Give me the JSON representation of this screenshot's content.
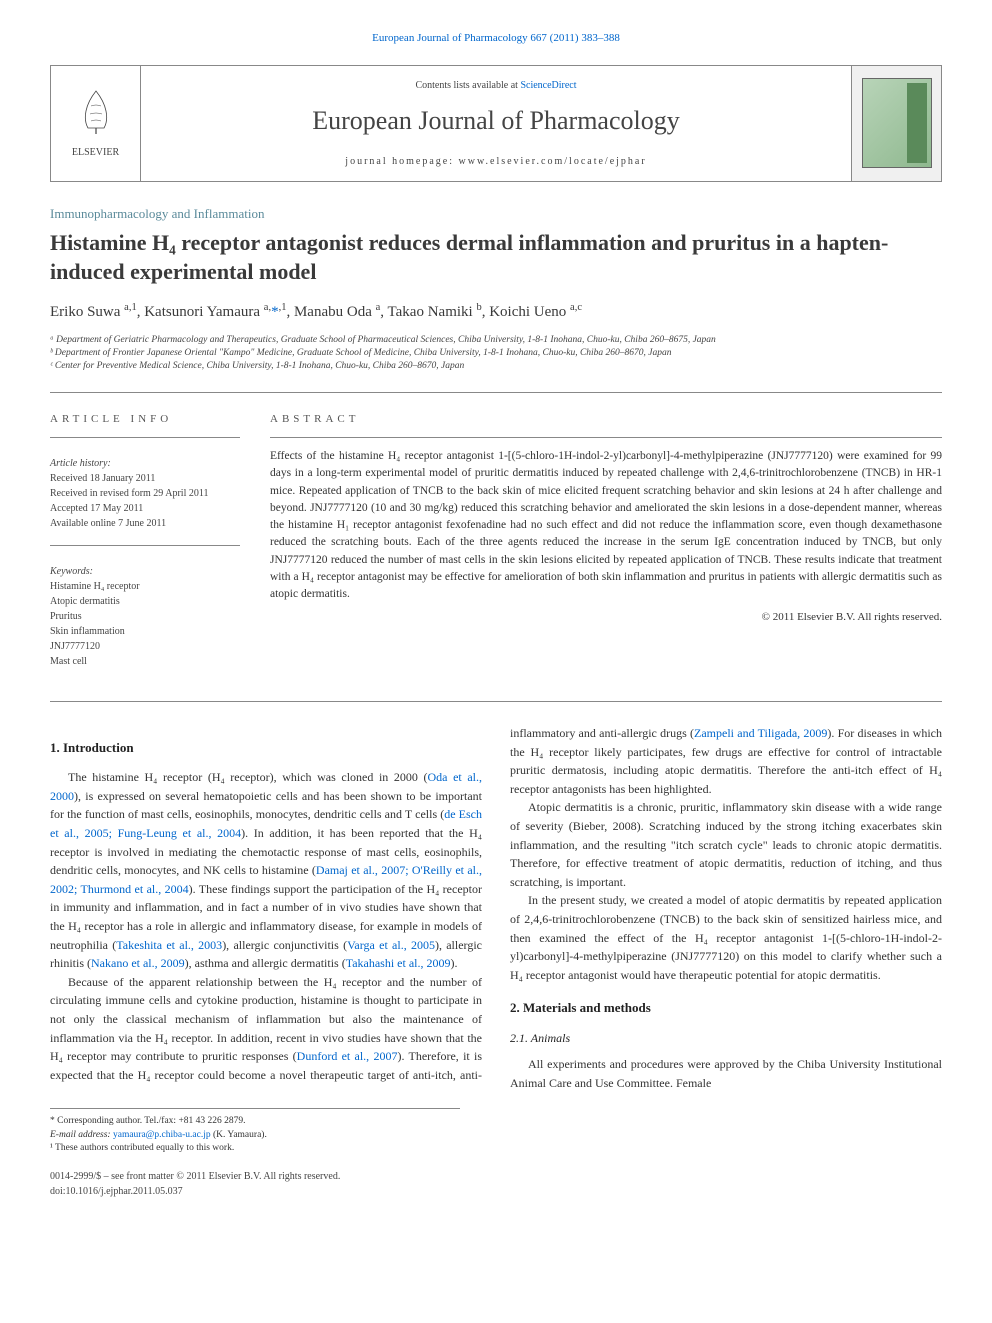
{
  "topLink": "European Journal of Pharmacology 667 (2011) 383–388",
  "header": {
    "contentsLine": "Contents lists available at ",
    "contentsLink": "ScienceDirect",
    "journalName": "European Journal of Pharmacology",
    "homepage": "journal homepage: www.elsevier.com/locate/ejphar",
    "publisherName": "ELSEVIER"
  },
  "sectionLabel": "Immunopharmacology and Inflammation",
  "title": "Histamine H₄ receptor antagonist reduces dermal inflammation and pruritus in a hapten-induced experimental model",
  "authorsHtml": "Eriko Suwa <sup>a,1</sup>, Katsunori Yamaura <sup>a,</sup><a href=\"#\">*</a><sup>,1</sup>, Manabu Oda <sup>a</sup>, Takao Namiki <sup>b</sup>, Koichi Ueno <sup>a,c</sup>",
  "affiliations": [
    "ᵃ Department of Geriatric Pharmacology and Therapeutics, Graduate School of Pharmaceutical Sciences, Chiba University, 1-8-1 Inohana, Chuo-ku, Chiba 260–8675, Japan",
    "ᵇ Department of Frontier Japanese Oriental \"Kampo\" Medicine, Graduate School of Medicine, Chiba University, 1-8-1 Inohana, Chuo-ku, Chiba 260–8670, Japan",
    "ᶜ Center for Preventive Medical Science, Chiba University, 1-8-1 Inohana, Chuo-ku, Chiba 260–8670, Japan"
  ],
  "articleInfo": {
    "heading": "ARTICLE INFO",
    "historyLabel": "Article history:",
    "history": [
      "Received 18 January 2011",
      "Received in revised form 29 April 2011",
      "Accepted 17 May 2011",
      "Available online 7 June 2011"
    ],
    "keywordsLabel": "Keywords:",
    "keywords": [
      "Histamine H₄ receptor",
      "Atopic dermatitis",
      "Pruritus",
      "Skin inflammation",
      "JNJ7777120",
      "Mast cell"
    ]
  },
  "abstract": {
    "heading": "ABSTRACT",
    "text": "Effects of the histamine H₄ receptor antagonist 1-[(5-chloro-1H-indol-2-yl)carbonyl]-4-methylpiperazine (JNJ7777120) were examined for 99 days in a long-term experimental model of pruritic dermatitis induced by repeated challenge with 2,4,6-trinitrochlorobenzene (TNCB) in HR-1 mice. Repeated application of TNCB to the back skin of mice elicited frequent scratching behavior and skin lesions at 24 h after challenge and beyond. JNJ7777120 (10 and 30 mg/kg) reduced this scratching behavior and ameliorated the skin lesions in a dose-dependent manner, whereas the histamine H₁ receptor antagonist fexofenadine had no such effect and did not reduce the inflammation score, even though dexamethasone reduced the scratching bouts. Each of the three agents reduced the increase in the serum IgE concentration induced by TNCB, but only JNJ7777120 reduced the number of mast cells in the skin lesions elicited by repeated application of TNCB. These results indicate that treatment with a H₄ receptor antagonist may be effective for amelioration of both skin inflammation and pruritus in patients with allergic dermatitis such as atopic dermatitis.",
    "copyright": "© 2011 Elsevier B.V. All rights reserved."
  },
  "body": {
    "s1": {
      "heading": "1. Introduction",
      "p1": "The histamine H₄ receptor (H₄ receptor), which was cloned in 2000 (Oda et al., 2000), is expressed on several hematopoietic cells and has been shown to be important for the function of mast cells, eosinophils, monocytes, dendritic cells and T cells (de Esch et al., 2005; Fung-Leung et al., 2004). In addition, it has been reported that the H₄ receptor is involved in mediating the chemotactic response of mast cells, eosinophils, dendritic cells, monocytes, and NK cells to histamine (Damaj et al., 2007; O'Reilly et al., 2002; Thurmond et al., 2004). These findings support the participation of the H₄ receptor in immunity and inflammation, and in fact a number of in vivo studies have shown that the H₄ receptor has a role in allergic and inflammatory disease, for example in models of neutrophilia (Takeshita et al., 2003), allergic conjunctivitis (Varga et al., 2005), allergic rhinitis (Nakano et al., 2009), asthma and allergic dermatitis (Takahashi et al., 2009).",
      "p2": "Because of the apparent relationship between the H₄ receptor and the number of circulating immune cells and cytokine production, histamine is thought to participate in not only the classical mechanism of inflammation but also the maintenance of inflammation via the H₄ receptor. In addition, recent in vivo studies have shown that the H₄ receptor may contribute to pruritic responses (Dunford et al., 2007). Therefore, it is expected that the H₄ receptor could become a novel therapeutic target of anti-itch, anti-inflammatory and anti-allergic drugs (Zampeli and Tiligada, 2009). For diseases in which the H₄ receptor likely participates, few drugs are effective for control of intractable pruritic dermatosis, including atopic dermatitis. Therefore the anti-itch effect of H₄ receptor antagonists has been highlighted.",
      "p3": "Atopic dermatitis is a chronic, pruritic, inflammatory skin disease with a wide range of severity (Bieber, 2008). Scratching induced by the strong itching exacerbates skin inflammation, and the resulting \"itch scratch cycle\" leads to chronic atopic dermatitis. Therefore, for effective treatment of atopic dermatitis, reduction of itching, and thus scratching, is important.",
      "p4": "In the present study, we created a model of atopic dermatitis by repeated application of 2,4,6-trinitrochlorobenzene (TNCB) to the back skin of sensitized hairless mice, and then examined the effect of the H₄ receptor antagonist 1-[(5-chloro-1H-indol-2-yl)carbonyl]-4-methylpiperazine (JNJ7777120) on this model to clarify whether such a H₄ receptor antagonist would have therapeutic potential for atopic dermatitis."
    },
    "s2": {
      "heading": "2. Materials and methods",
      "s21heading": "2.1. Animals",
      "s21p1": "All experiments and procedures were approved by the Chiba University Institutional Animal Care and Use Committee. Female"
    }
  },
  "footnotes": {
    "corr": "* Corresponding author. Tel./fax: +81 43 226 2879.",
    "emailLabel": "E-mail address: ",
    "email": "yamaura@p.chiba-u.ac.jp",
    "emailSuffix": " (K. Yamaura).",
    "contrib": "¹ These authors contributed equally to this work."
  },
  "footer": {
    "left1": "0014-2999/$ – see front matter © 2011 Elsevier B.V. All rights reserved.",
    "left2": "doi:10.1016/j.ejphar.2011.05.037"
  },
  "colors": {
    "link": "#0066cc",
    "text": "#333333",
    "sectionLabel": "#5a8a9a"
  }
}
